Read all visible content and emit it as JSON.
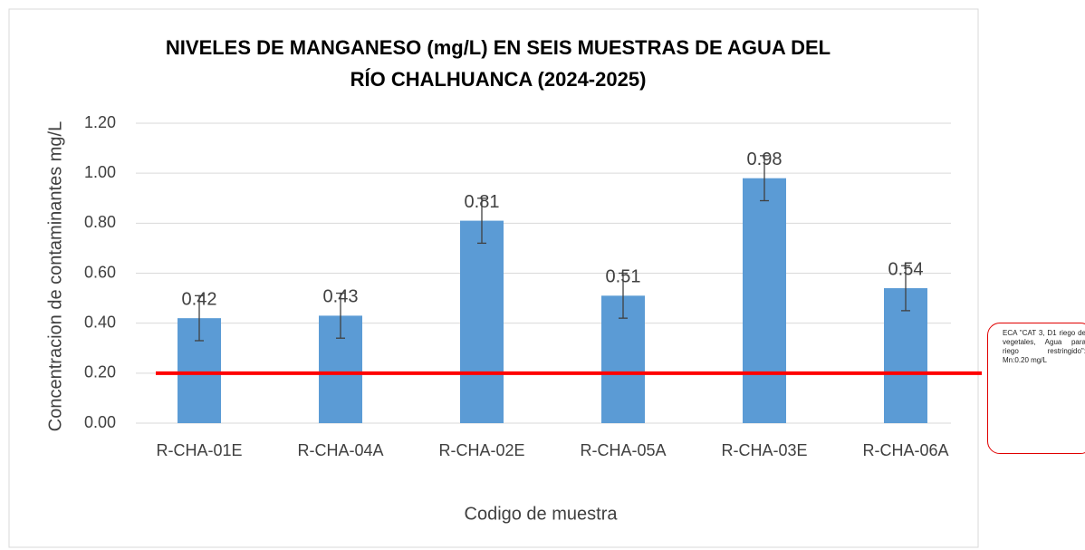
{
  "chart_data": {
    "type": "bar",
    "title": "NIVELES DE MANGANESO (mg/L) EN SEIS MUESTRAS DE AGUA DEL",
    "title_line2": "RÍO CHALHUANCA (2024-2025)",
    "x_label": "Codigo de muestra",
    "y_label": "Concentracion de contaminantes mg/L",
    "categories": [
      "R-CHA-01E",
      "R-CHA-04A",
      "R-CHA-02E",
      "R-CHA-05A",
      "R-CHA-03E",
      "R-CHA-06A"
    ],
    "values": [
      0.42,
      0.43,
      0.81,
      0.51,
      0.98,
      0.54
    ],
    "errors": [
      0.09,
      0.09,
      0.09,
      0.09,
      0.09,
      0.09
    ],
    "color": "#5b9bd5",
    "ylim": [
      0,
      1.2
    ],
    "yticks": [
      {
        "value": 0,
        "label": "0.00"
      },
      {
        "value": 0.2,
        "label": "0.20"
      },
      {
        "value": 0.4,
        "label": "0.40"
      },
      {
        "value": 0.6,
        "label": "0.60"
      },
      {
        "value": 0.8,
        "label": "0.80"
      },
      {
        "value": 1,
        "label": "1.00"
      },
      {
        "value": 1.2,
        "label": "1.20"
      }
    ],
    "grid": true,
    "threshold": {
      "value": 0.2,
      "color": "#ff0000"
    },
    "annotation": "ECA \"CAT 3, D1 riego de vegetales, Agua para riego restringido\": Mn:0.20 mg/L"
  }
}
